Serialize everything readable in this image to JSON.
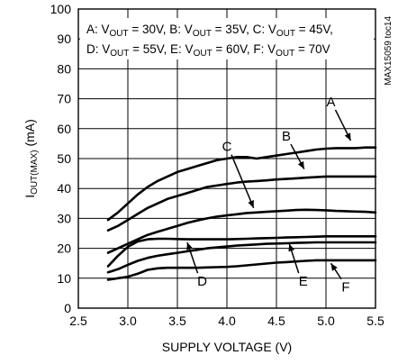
{
  "chart_data": {
    "type": "line",
    "xlabel": "SUPPLY VOLTAGE (V)",
    "ylabel": "I_OUT(MAX) (mA)",
    "ylabel_main": "I",
    "ylabel_sub": "OUT(MAX)",
    "ylabel_unit": " (mA)",
    "xlim": [
      2.5,
      5.5
    ],
    "ylim": [
      0,
      100
    ],
    "x_ticks": [
      "2.5",
      "3.0",
      "3.5",
      "4.0",
      "4.5",
      "5.0",
      "5.5"
    ],
    "y_ticks": [
      "0",
      "10",
      "20",
      "30",
      "40",
      "50",
      "60",
      "70",
      "80",
      "90",
      "100"
    ],
    "grid": true,
    "side_note": "MAX15059 toc14",
    "legend": {
      "line1": [
        {
          "prefix": "A: V",
          "sub": "OUT",
          "suffix": " = 30V,"
        },
        {
          "prefix": " B: V",
          "sub": "OUT",
          "suffix": " = 35V,"
        },
        {
          "prefix": " C: V",
          "sub": "OUT",
          "suffix": " = 45V,"
        }
      ],
      "line2": [
        {
          "prefix": "D: V",
          "sub": "OUT",
          "suffix": " = 55V,"
        },
        {
          "prefix": " E: V",
          "sub": "OUT",
          "suffix": " = 60V,"
        },
        {
          "prefix": " F: V",
          "sub": "OUT",
          "suffix": " = 70V"
        }
      ]
    },
    "series": [
      {
        "name": "A",
        "label_at": [
          5.05,
          67.5
        ],
        "arrow_to": [
          5.25,
          56
        ],
        "x": [
          2.8,
          2.9,
          3.0,
          3.1,
          3.2,
          3.3,
          3.4,
          3.5,
          3.6,
          3.7,
          3.8,
          3.9,
          4.0,
          4.1,
          4.2,
          4.3,
          4.4,
          4.5,
          4.6,
          4.7,
          4.8,
          4.9,
          5.0,
          5.1,
          5.2,
          5.3,
          5.4,
          5.5
        ],
        "values": [
          29.5,
          32,
          35,
          38,
          40.5,
          42.5,
          44,
          45.5,
          46.5,
          47.5,
          48.5,
          49.5,
          50,
          50.5,
          50.5,
          50,
          50.5,
          51,
          51.5,
          52,
          52.5,
          53,
          53.3,
          53.5,
          53.5,
          53.5,
          53.7,
          53.7
        ]
      },
      {
        "name": "B",
        "label_at": [
          4.6,
          56
        ],
        "arrow_to": [
          4.78,
          46.5
        ],
        "x": [
          2.8,
          2.9,
          3.0,
          3.1,
          3.2,
          3.3,
          3.4,
          3.5,
          3.6,
          3.7,
          3.8,
          3.9,
          4.0,
          4.1,
          4.2,
          4.3,
          4.4,
          4.5,
          4.6,
          4.7,
          4.8,
          4.9,
          5.0,
          5.1,
          5.2,
          5.3,
          5.4,
          5.5
        ],
        "values": [
          26,
          27.5,
          29.5,
          31.5,
          33.5,
          35,
          36.5,
          37.5,
          38.5,
          39.5,
          40.5,
          41,
          41.5,
          42,
          42.3,
          42.5,
          42.7,
          43,
          43.2,
          43.4,
          43.6,
          43.8,
          44,
          44,
          44,
          44,
          44,
          44
        ]
      },
      {
        "name": "C",
        "label_at": [
          4.0,
          52.5
        ],
        "arrow_to": [
          4.27,
          33.5
        ],
        "x": [
          2.8,
          2.9,
          3.0,
          3.1,
          3.2,
          3.3,
          3.4,
          3.5,
          3.6,
          3.7,
          3.8,
          3.9,
          4.0,
          4.1,
          4.2,
          4.3,
          4.4,
          4.5,
          4.6,
          4.7,
          4.8,
          4.9,
          5.0,
          5.1,
          5.2,
          5.3,
          5.4,
          5.5
        ],
        "values": [
          18.5,
          20,
          21.5,
          23,
          24.5,
          25.5,
          26.5,
          27.5,
          28.5,
          29.3,
          30,
          30.6,
          31,
          31.4,
          31.8,
          32,
          32.2,
          32.4,
          32.6,
          32.8,
          32.9,
          32.8,
          32.7,
          32.5,
          32.4,
          32.3,
          32.2,
          32
        ]
      },
      {
        "name": "D",
        "label_at": [
          3.75,
          7.5
        ],
        "arrow_to": [
          3.6,
          22
        ],
        "x": [
          2.8,
          2.9,
          3.0,
          3.1,
          3.2,
          3.3,
          3.4,
          3.5,
          3.6,
          3.7,
          3.8,
          3.9,
          4.0,
          4.1,
          4.2,
          4.3,
          4.4,
          4.5,
          4.6,
          4.7,
          4.8,
          4.9,
          5.0,
          5.1,
          5.2,
          5.3,
          5.4,
          5.5
        ],
        "values": [
          14,
          17.5,
          20.5,
          22.3,
          23,
          23.2,
          23.2,
          23.1,
          23,
          23,
          23,
          23,
          23,
          23.1,
          23.2,
          23.3,
          23.4,
          23.5,
          23.6,
          23.7,
          23.8,
          23.9,
          24,
          24,
          24,
          24,
          24,
          24
        ]
      },
      {
        "name": "E",
        "label_at": [
          4.77,
          7.5
        ],
        "arrow_to": [
          4.63,
          21.5
        ],
        "x": [
          2.8,
          2.9,
          3.0,
          3.1,
          3.2,
          3.3,
          3.4,
          3.5,
          3.6,
          3.7,
          3.8,
          3.9,
          4.0,
          4.1,
          4.2,
          4.3,
          4.4,
          4.5,
          4.6,
          4.7,
          4.8,
          4.9,
          5.0,
          5.1,
          5.2,
          5.3,
          5.4,
          5.5
        ],
        "values": [
          12,
          13,
          14.5,
          15.8,
          16.8,
          17.5,
          18,
          18.5,
          19,
          19.5,
          20,
          20.3,
          20.6,
          20.9,
          21.1,
          21.3,
          21.5,
          21.6,
          21.7,
          21.8,
          21.9,
          22,
          22,
          22,
          22,
          22,
          22,
          22
        ]
      },
      {
        "name": "F",
        "label_at": [
          5.2,
          5.5
        ],
        "arrow_to": [
          5.05,
          15
        ],
        "x": [
          2.8,
          2.9,
          3.0,
          3.1,
          3.2,
          3.3,
          3.4,
          3.5,
          3.6,
          3.7,
          3.8,
          3.9,
          4.0,
          4.1,
          4.2,
          4.3,
          4.4,
          4.5,
          4.6,
          4.7,
          4.8,
          4.9,
          5.0,
          5.1,
          5.2,
          5.3,
          5.4,
          5.5
        ],
        "values": [
          9.5,
          10,
          10.5,
          11.5,
          12.8,
          13.3,
          13.5,
          13.5,
          13.5,
          13.5,
          13.6,
          13.7,
          13.8,
          14,
          14.3,
          14.6,
          14.9,
          15.2,
          15.4,
          15.6,
          15.8,
          16,
          16,
          16,
          16,
          16,
          16,
          16
        ]
      }
    ]
  }
}
